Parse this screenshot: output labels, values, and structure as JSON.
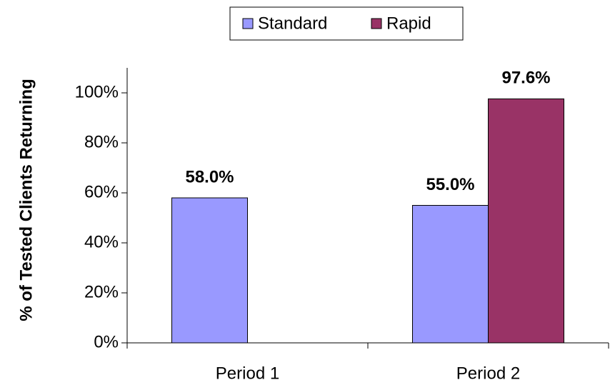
{
  "chart_data": {
    "type": "bar",
    "categories": [
      "Period 1",
      "Period 2"
    ],
    "series": [
      {
        "name": "Standard",
        "color": "#9999ff",
        "values": [
          58.0,
          55.0
        ],
        "value_labels": [
          "58.0%",
          "55.0%"
        ]
      },
      {
        "name": "Rapid",
        "color": "#993366",
        "values": [
          null,
          97.6
        ],
        "value_labels": [
          null,
          "97.6%"
        ]
      }
    ],
    "y_label": "% of Tested Clients Returning",
    "ylim": [
      0,
      110
    ],
    "yticks": [
      {
        "value": 0,
        "label": "0%"
      },
      {
        "value": 20,
        "label": "20%"
      },
      {
        "value": 40,
        "label": "40%"
      },
      {
        "value": 60,
        "label": "60%"
      },
      {
        "value": 80,
        "label": "80%"
      },
      {
        "value": 100,
        "label": "100%"
      }
    ],
    "grid": false,
    "legend": "top"
  }
}
